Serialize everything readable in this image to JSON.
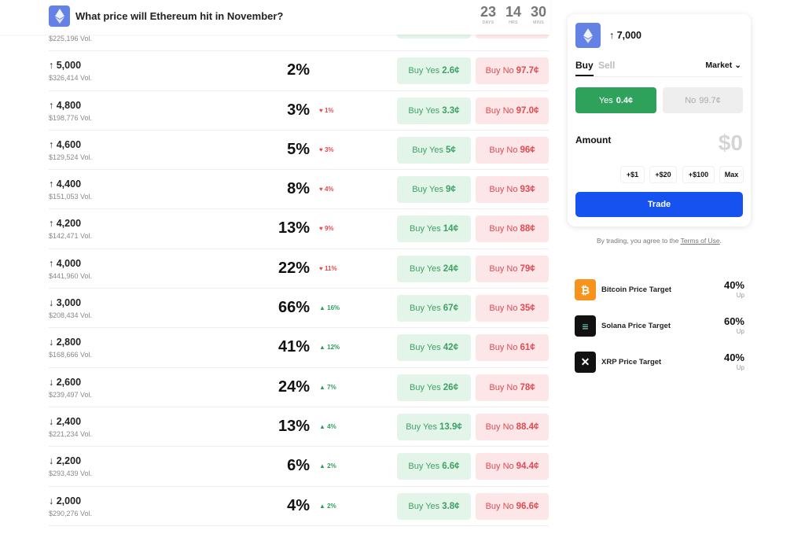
{
  "header": {
    "title": "What price will Ethereum hit in November?",
    "countdown": [
      {
        "value": "23",
        "label": "DAYS"
      },
      {
        "value": "14",
        "label": "HRS"
      },
      {
        "value": "30",
        "label": "MINS"
      }
    ]
  },
  "partial_row": {
    "volume": "$225,196 Vol."
  },
  "rows": [
    {
      "dir": "↑",
      "price": "5,000",
      "volume": "$326,414 Vol.",
      "pct": "2%",
      "change": "",
      "trend": "",
      "yes": "2.6¢",
      "no": "97.7¢"
    },
    {
      "dir": "↑",
      "price": "4,800",
      "volume": "$198,776 Vol.",
      "pct": "3%",
      "change": "1%",
      "trend": "down",
      "yes": "3.3¢",
      "no": "97.0¢"
    },
    {
      "dir": "↑",
      "price": "4,600",
      "volume": "$129,524 Vol.",
      "pct": "5%",
      "change": "3%",
      "trend": "down",
      "yes": "5¢",
      "no": "96¢"
    },
    {
      "dir": "↑",
      "price": "4,400",
      "volume": "$151,053 Vol.",
      "pct": "8%",
      "change": "4%",
      "trend": "down",
      "yes": "9¢",
      "no": "93¢"
    },
    {
      "dir": "↑",
      "price": "4,200",
      "volume": "$142,471 Vol.",
      "pct": "13%",
      "change": "9%",
      "trend": "down",
      "yes": "14¢",
      "no": "88¢"
    },
    {
      "dir": "↑",
      "price": "4,000",
      "volume": "$441,960 Vol.",
      "pct": "22%",
      "change": "11%",
      "trend": "down",
      "yes": "24¢",
      "no": "79¢"
    },
    {
      "dir": "↓",
      "price": "3,000",
      "volume": "$208,434 Vol.",
      "pct": "66%",
      "change": "16%",
      "trend": "up",
      "yes": "67¢",
      "no": "35¢"
    },
    {
      "dir": "↓",
      "price": "2,800",
      "volume": "$168,666 Vol.",
      "pct": "41%",
      "change": "12%",
      "trend": "up",
      "yes": "42¢",
      "no": "61¢"
    },
    {
      "dir": "↓",
      "price": "2,600",
      "volume": "$239,497 Vol.",
      "pct": "24%",
      "change": "7%",
      "trend": "up",
      "yes": "26¢",
      "no": "78¢"
    },
    {
      "dir": "↓",
      "price": "2,400",
      "volume": "$221,234 Vol.",
      "pct": "13%",
      "change": "4%",
      "trend": "up",
      "yes": "13.9¢",
      "no": "88.4¢"
    },
    {
      "dir": "↓",
      "price": "2,200",
      "volume": "$293,439 Vol.",
      "pct": "6%",
      "change": "2%",
      "trend": "up",
      "yes": "6.6¢",
      "no": "94.4¢"
    },
    {
      "dir": "↓",
      "price": "2,000",
      "volume": "$290,276 Vol.",
      "pct": "4%",
      "change": "2%",
      "trend": "up",
      "yes": "3.8¢",
      "no": "96.6¢"
    }
  ],
  "labels": {
    "buy_yes": "Buy Yes",
    "buy_no": "Buy No"
  },
  "trade_panel": {
    "outcome": "↑ 7,000",
    "tab_buy": "Buy",
    "tab_sell": "Sell",
    "order_type": "Market",
    "yes_label": "Yes",
    "yes_price": "0.4¢",
    "no_label": "No",
    "no_price": "99.7¢",
    "amount_label": "Amount",
    "amount_value": "$0",
    "quick": [
      "+$1",
      "+$20",
      "+$100",
      "Max"
    ],
    "trade": "Trade",
    "terms_prefix": "By trading, you agree to the ",
    "terms_link": "Terms of Use",
    "terms_suffix": "."
  },
  "related": [
    {
      "name": "Bitcoin Price Target",
      "pct": "40%",
      "dir": "Up",
      "color": "#f7931a",
      "icon": "bitcoin-icon"
    },
    {
      "name": "Solana Price Target",
      "pct": "60%",
      "dir": "Up",
      "color": "#111111",
      "icon": "solana-icon"
    },
    {
      "name": "XRP Price Target",
      "pct": "40%",
      "dir": "Up",
      "color": "#111111",
      "icon": "xrp-icon"
    }
  ],
  "colors": {
    "yes": "#2ea15b",
    "no": "#e04a52",
    "trade": "#1652f0",
    "eth": "#6481e6"
  }
}
